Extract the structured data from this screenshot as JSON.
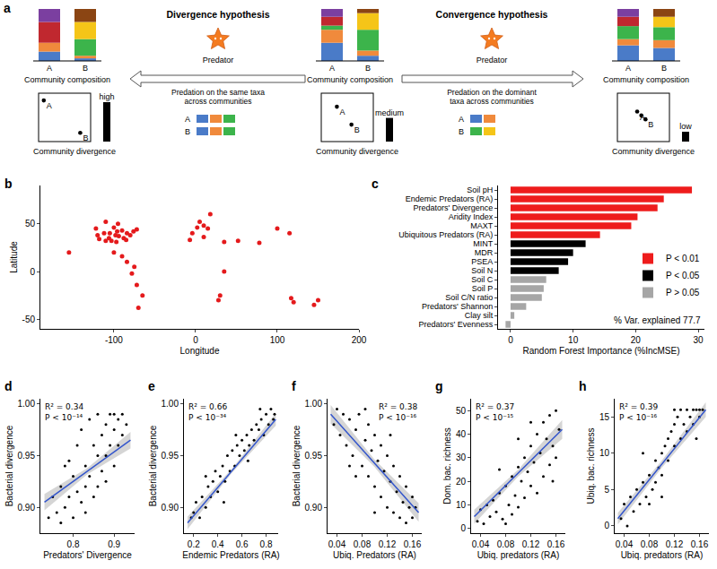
{
  "diagram": {
    "panel": "a",
    "composition_label": "Community composition",
    "divergence_label": "Community divergence",
    "groups": [
      {
        "communities": [
          {
            "label": "A",
            "segments": [
              {
                "color": "#4a7bc8",
                "value": 18
              },
              {
                "color": "#f08a3c",
                "value": 17
              },
              {
                "color": "#c0282f",
                "value": 40
              },
              {
                "color": "#7b3fa0",
                "value": 25
              }
            ]
          },
          {
            "label": "B",
            "segments": [
              {
                "color": "#4a7bc8",
                "value": 5
              },
              {
                "color": "#f08a3c",
                "value": 5
              },
              {
                "color": "#3cb44b",
                "value": 32
              },
              {
                "color": "#f5c518",
                "value": 33
              },
              {
                "color": "#8b4513",
                "value": 25
              }
            ]
          }
        ],
        "points": [
          {
            "x": 0.1,
            "y": 0.85,
            "label": "A"
          },
          {
            "x": 0.8,
            "y": 0.18,
            "label": "B"
          }
        ],
        "divergence": {
          "value": 1,
          "label": "high"
        }
      },
      {
        "communities": [
          {
            "label": "A",
            "segments": [
              {
                "color": "#4a7bc8",
                "value": 35
              },
              {
                "color": "#f08a3c",
                "value": 25
              },
              {
                "color": "#3cb44b",
                "value": 8
              },
              {
                "color": "#c0282f",
                "value": 17
              },
              {
                "color": "#7b3fa0",
                "value": 15
              }
            ]
          },
          {
            "label": "B",
            "segments": [
              {
                "color": "#4a7bc8",
                "value": 10
              },
              {
                "color": "#f08a3c",
                "value": 10
              },
              {
                "color": "#3cb44b",
                "value": 40
              },
              {
                "color": "#f5c518",
                "value": 32
              },
              {
                "color": "#8b4513",
                "value": 8
              }
            ]
          }
        ],
        "points": [
          {
            "x": 0.3,
            "y": 0.72,
            "label": "A"
          },
          {
            "x": 0.58,
            "y": 0.35,
            "label": "B"
          }
        ],
        "divergence": {
          "value": 0.6,
          "label": "medium"
        }
      },
      {
        "communities": [
          {
            "label": "A",
            "segments": [
              {
                "color": "#4a7bc8",
                "value": 30
              },
              {
                "color": "#f08a3c",
                "value": 12
              },
              {
                "color": "#3cb44b",
                "value": 25
              },
              {
                "color": "#c0282f",
                "value": 18
              },
              {
                "color": "#7b3fa0",
                "value": 15
              }
            ]
          },
          {
            "label": "B",
            "segments": [
              {
                "color": "#4a7bc8",
                "value": 25
              },
              {
                "color": "#f08a3c",
                "value": 15
              },
              {
                "color": "#3cb44b",
                "value": 25
              },
              {
                "color": "#f5c518",
                "value": 20
              },
              {
                "color": "#8b4513",
                "value": 15
              }
            ]
          }
        ],
        "points": [
          {
            "x": 0.38,
            "y": 0.62,
            "label": "A"
          },
          {
            "x": 0.46,
            "y": 0.54,
            "label": null
          },
          {
            "x": 0.54,
            "y": 0.46,
            "label": "B"
          }
        ],
        "divergence": {
          "value": 0.25,
          "label": "low"
        }
      }
    ],
    "hypotheses": [
      {
        "title": "Divergence hypothesis",
        "predator": "Predator",
        "direction": "left",
        "description": "Predation on the same taxa across communities",
        "prey": [
          {
            "label": "A",
            "colors": [
              "#4a7bc8",
              "#f08a3c",
              "#3cb44b"
            ]
          },
          {
            "label": "B",
            "colors": [
              "#4a7bc8",
              "#f08a3c",
              "#3cb44b"
            ]
          }
        ]
      },
      {
        "title": "Convergence hypothesis",
        "predator": "Predator",
        "direction": "right",
        "description": "Predation on the dominant taxa across communities",
        "prey": [
          {
            "label": "A",
            "colors": [
              "#4a7bc8",
              "#f08a3c"
            ]
          },
          {
            "label": "B",
            "colors": [
              "#3cb44b",
              "#f5c518"
            ]
          }
        ]
      }
    ]
  },
  "chart_data": [
    {
      "panel": "b",
      "type": "scatter",
      "x_label": "Longitude",
      "y_label": "Latitude",
      "color": "#e41a1c",
      "x": [
        -122,
        -120,
        -118,
        -112,
        -106,
        -105,
        -100,
        -98,
        -96,
        -94,
        -90,
        -88,
        -84,
        -80,
        -76,
        -72,
        -110,
        -103,
        -97,
        -155,
        -85,
        -110,
        -95,
        -100,
        -90,
        -84,
        -75,
        -78,
        -72,
        -65,
        -70,
        -4,
        2,
        5,
        10,
        18,
        15,
        -7,
        10,
        35,
        30,
        28,
        35,
        52,
        100,
        115,
        78,
        117,
        145,
        150,
        120
      ],
      "y": [
        45,
        38,
        34,
        40,
        35,
        40,
        46,
        38,
        42,
        37,
        43,
        35,
        40,
        38,
        42,
        44,
        32,
        32,
        31,
        20,
        33,
        52,
        50,
        20,
        16,
        10,
        5,
        -2,
        -14,
        -25,
        -38,
        40,
        46,
        52,
        48,
        60,
        45,
        33,
        36,
        31,
        -25,
        -30,
        0,
        32,
        45,
        40,
        30,
        -28,
        -35,
        -30,
        -32
      ],
      "xlim": [
        -190,
        200
      ],
      "xticks": [
        -100,
        0,
        100,
        200
      ],
      "ylim": [
        -60,
        90
      ],
      "yticks": [
        -50,
        0,
        50
      ]
    },
    {
      "panel": "c",
      "type": "bar",
      "orientation": "horizontal",
      "legend": "lower right",
      "x_label": "Random Forest Importance (%IncMSE)",
      "annotations": [
        "% Var. explained 77.7"
      ],
      "categories": [
        "Soil pH",
        "Endemic Predators (RA)",
        "Predators' Divergence",
        "Aridity Index",
        "MAXT",
        "Ubiquitous Predators (RA)",
        "MINT",
        "MDR",
        "PSEA",
        "Soil N",
        "Soil C",
        "Soil P",
        "Soil C/N ratio",
        "Predators' Shannon",
        "Clay silt",
        "Predators' Evenness"
      ],
      "series": [
        {
          "name": "P < 0.01",
          "color": "#ee1c1c",
          "values": [
            29,
            24.5,
            23.5,
            20.3,
            19.3,
            14.3,
            null,
            null,
            null,
            null,
            null,
            null,
            null,
            null,
            null,
            null
          ]
        },
        {
          "name": "P < 0.05",
          "color": "#000000",
          "values": [
            null,
            null,
            null,
            null,
            null,
            null,
            12,
            10,
            9.2,
            7.7,
            null,
            null,
            null,
            null,
            null,
            null
          ]
        },
        {
          "name": "P > 0.05",
          "color": "#a6a6a6",
          "values": [
            null,
            null,
            null,
            null,
            null,
            null,
            null,
            null,
            null,
            null,
            5.7,
            5.3,
            5,
            2.5,
            0.6,
            -0.8
          ]
        }
      ],
      "xlim": [
        -2,
        31
      ],
      "xticks": [
        0,
        10,
        20,
        30
      ]
    },
    {
      "panel": "d",
      "type": "scatter",
      "x_label": "Predators' Divergence",
      "y_label": "Bacterial divergence",
      "color": "#000000",
      "annotations": [
        "R² = 0.34",
        "P < 10⁻¹⁴"
      ],
      "x": [
        0.74,
        0.75,
        0.76,
        0.77,
        0.78,
        0.78,
        0.79,
        0.8,
        0.8,
        0.81,
        0.81,
        0.82,
        0.82,
        0.83,
        0.83,
        0.84,
        0.84,
        0.85,
        0.85,
        0.86,
        0.86,
        0.87,
        0.87,
        0.88,
        0.88,
        0.89,
        0.89,
        0.9,
        0.9,
        0.91,
        0.91,
        0.92,
        0.92,
        0.93,
        0.77,
        0.79,
        0.83,
        0.86,
        0.88,
        0.9
      ],
      "y": [
        0.89,
        0.91,
        0.895,
        0.92,
        0.9,
        0.94,
        0.91,
        0.93,
        0.89,
        0.96,
        0.915,
        0.905,
        0.975,
        0.94,
        0.92,
        0.985,
        0.93,
        0.96,
        0.91,
        0.95,
        0.99,
        0.935,
        0.97,
        0.98,
        0.95,
        0.99,
        0.96,
        0.975,
        0.94,
        0.985,
        0.96,
        0.99,
        0.97,
        0.98,
        0.885,
        0.945,
        0.895,
        0.92,
        0.925,
        0.99
      ],
      "fit": {
        "x": [
          0.73,
          0.835,
          0.94
        ],
        "y": [
          0.905,
          0.935,
          0.965
        ],
        "lower": [
          0.897,
          0.932,
          0.957
        ],
        "upper": [
          0.913,
          0.938,
          0.973
        ]
      },
      "xlim": [
        0.72,
        0.95
      ],
      "xticks": [
        0.8,
        0.9
      ],
      "ylim": [
        0.875,
        1.005
      ],
      "yticks": [
        {
          "value": 0.9,
          "label": "0.90"
        },
        {
          "value": 0.95,
          "label": "0.95"
        },
        {
          "value": 1,
          "label": "1.00"
        }
      ]
    },
    {
      "panel": "e",
      "type": "scatter",
      "x_label": "Endemic Predators (RA)",
      "y_label": "Bacterial divergence",
      "color": "#000000",
      "annotations": [
        "R² = 0.66",
        "P < 10⁻³⁴"
      ],
      "x": [
        0.18,
        0.2,
        0.22,
        0.25,
        0.27,
        0.3,
        0.32,
        0.34,
        0.36,
        0.38,
        0.4,
        0.42,
        0.44,
        0.46,
        0.48,
        0.5,
        0.52,
        0.54,
        0.56,
        0.58,
        0.6,
        0.62,
        0.64,
        0.66,
        0.68,
        0.7,
        0.72,
        0.74,
        0.76,
        0.78,
        0.8,
        0.82,
        0.84,
        0.86,
        0.87,
        0.3,
        0.45,
        0.55,
        0.65,
        0.75
      ],
      "y": [
        0.89,
        0.895,
        0.905,
        0.89,
        0.91,
        0.9,
        0.92,
        0.91,
        0.925,
        0.935,
        0.915,
        0.93,
        0.94,
        0.925,
        0.95,
        0.935,
        0.955,
        0.94,
        0.96,
        0.95,
        0.965,
        0.955,
        0.97,
        0.96,
        0.975,
        0.965,
        0.98,
        0.975,
        0.985,
        0.97,
        0.99,
        0.98,
        0.995,
        0.985,
        0.99,
        0.93,
        0.905,
        0.97,
        0.945,
        0.995
      ],
      "fit": {
        "x": [
          0.15,
          0.515,
          0.88
        ],
        "y": [
          0.885,
          0.935,
          0.985
        ],
        "lower": [
          0.879,
          0.933,
          0.979
        ],
        "upper": [
          0.891,
          0.937,
          0.991
        ]
      },
      "xlim": [
        0.12,
        0.9
      ],
      "xticks": [
        0.2,
        0.4,
        0.6,
        0.8
      ],
      "ylim": [
        0.875,
        1.005
      ],
      "yticks": [
        {
          "value": 0.9,
          "label": "0.90"
        },
        {
          "value": 0.95,
          "label": "0.95"
        },
        {
          "value": 1,
          "label": "1.00"
        }
      ]
    },
    {
      "panel": "f",
      "type": "scatter",
      "x_label": "Ubiq. Predators (RA)",
      "y_label": "Bacterial divergence",
      "color": "#000000",
      "annotations": [
        "R² = 0.38",
        "P < 10⁻¹⁶"
      ],
      "x": [
        0.035,
        0.04,
        0.045,
        0.05,
        0.055,
        0.06,
        0.065,
        0.07,
        0.075,
        0.08,
        0.085,
        0.09,
        0.09,
        0.095,
        0.1,
        0.1,
        0.105,
        0.11,
        0.11,
        0.115,
        0.12,
        0.12,
        0.125,
        0.13,
        0.13,
        0.135,
        0.14,
        0.14,
        0.145,
        0.15,
        0.15,
        0.155,
        0.16,
        0.16,
        0.165,
        0.07,
        0.085,
        0.1,
        0.125,
        0.06
      ],
      "y": [
        0.98,
        0.995,
        0.97,
        0.99,
        0.96,
        0.985,
        0.95,
        0.975,
        0.99,
        0.94,
        0.965,
        0.93,
        0.98,
        0.955,
        0.92,
        0.97,
        0.945,
        0.91,
        0.96,
        0.935,
        0.9,
        0.95,
        0.925,
        0.94,
        0.895,
        0.915,
        0.93,
        0.89,
        0.905,
        0.92,
        0.885,
        0.9,
        0.91,
        0.89,
        0.9,
        0.93,
        0.995,
        0.895,
        0.97,
        0.94
      ],
      "fit": {
        "x": [
          0.03,
          0.1,
          0.17
        ],
        "y": [
          0.99,
          0.9425,
          0.895
        ],
        "lower": [
          0.981,
          0.939,
          0.886
        ],
        "upper": [
          0.999,
          0.946,
          0.904
        ]
      },
      "xlim": [
        0.025,
        0.175
      ],
      "xticks": [
        0.04,
        0.08,
        0.12,
        0.16
      ],
      "ylim": [
        0.875,
        1.005
      ],
      "yticks": [
        {
          "value": 0.9,
          "label": "0.90"
        },
        {
          "value": 0.95,
          "label": "0.95"
        },
        {
          "value": 1,
          "label": "1.00"
        }
      ]
    },
    {
      "panel": "g",
      "type": "scatter",
      "x_label": "Ubiq. predators (RA)",
      "y_label": "Dom. bac. richness",
      "color": "#000000",
      "annotations": [
        "R² = 0.37",
        "P < 10⁻¹⁵"
      ],
      "x": [
        0.035,
        0.04,
        0.045,
        0.05,
        0.055,
        0.06,
        0.065,
        0.07,
        0.075,
        0.08,
        0.085,
        0.09,
        0.09,
        0.095,
        0.1,
        0.1,
        0.105,
        0.11,
        0.11,
        0.115,
        0.12,
        0.12,
        0.125,
        0.13,
        0.13,
        0.135,
        0.14,
        0.14,
        0.145,
        0.15,
        0.15,
        0.155,
        0.16,
        0.16,
        0.165,
        0.07,
        0.08,
        0.12,
        0.1,
        0.155
      ],
      "y": [
        3,
        8,
        2,
        10,
        5,
        12,
        7,
        15,
        4,
        18,
        10,
        22,
        6,
        14,
        26,
        9,
        20,
        30,
        13,
        24,
        35,
        18,
        28,
        40,
        15,
        32,
        45,
        22,
        38,
        48,
        27,
        35,
        50,
        30,
        42,
        25,
        2,
        45,
        38,
        20
      ],
      "fit": {
        "x": [
          0.03,
          0.1,
          0.17
        ],
        "y": [
          5,
          23.5,
          42
        ],
        "lower": [
          2,
          22,
          38
        ],
        "upper": [
          8,
          25,
          46
        ]
      },
      "xlim": [
        0.025,
        0.175
      ],
      "xticks": [
        0.04,
        0.08,
        0.12,
        0.16
      ],
      "ylim": [
        -2,
        55
      ],
      "yticks": [
        0,
        10,
        20,
        30,
        40,
        50
      ]
    },
    {
      "panel": "h",
      "type": "scatter",
      "x_label": "Ubiq. predators (RA)",
      "y_label": "Ubiq. bac. richness",
      "color": "#000000",
      "annotations": [
        "R² = 0.39",
        "P < 10⁻¹⁶"
      ],
      "x": [
        0.035,
        0.04,
        0.045,
        0.05,
        0.055,
        0.06,
        0.065,
        0.07,
        0.075,
        0.08,
        0.085,
        0.09,
        0.09,
        0.095,
        0.1,
        0.1,
        0.105,
        0.11,
        0.11,
        0.115,
        0.12,
        0.12,
        0.125,
        0.13,
        0.13,
        0.135,
        0.14,
        0.14,
        0.145,
        0.15,
        0.15,
        0.155,
        0.16,
        0.16,
        0.165,
        0.07,
        0.08,
        0.12,
        0.1,
        0.155
      ],
      "y": [
        1,
        3,
        0,
        4,
        2,
        5,
        3,
        6,
        4,
        7,
        5,
        9,
        6,
        8,
        10,
        7,
        11,
        12,
        9,
        13,
        14,
        11,
        15,
        16,
        12,
        14,
        16,
        13,
        15,
        16,
        14,
        16,
        16,
        15,
        16,
        10,
        3,
        16,
        4,
        12
      ],
      "fit": {
        "x": [
          0.03,
          0.1,
          0.17
        ],
        "y": [
          1,
          8.5,
          16
        ],
        "lower": [
          0.2,
          8,
          15
        ],
        "upper": [
          1.8,
          9,
          17
        ]
      },
      "xlim": [
        0.025,
        0.175
      ],
      "xticks": [
        0.04,
        0.08,
        0.12,
        0.16
      ],
      "ylim": [
        -1,
        17.5
      ],
      "yticks": [
        0,
        5,
        10,
        15
      ]
    }
  ]
}
